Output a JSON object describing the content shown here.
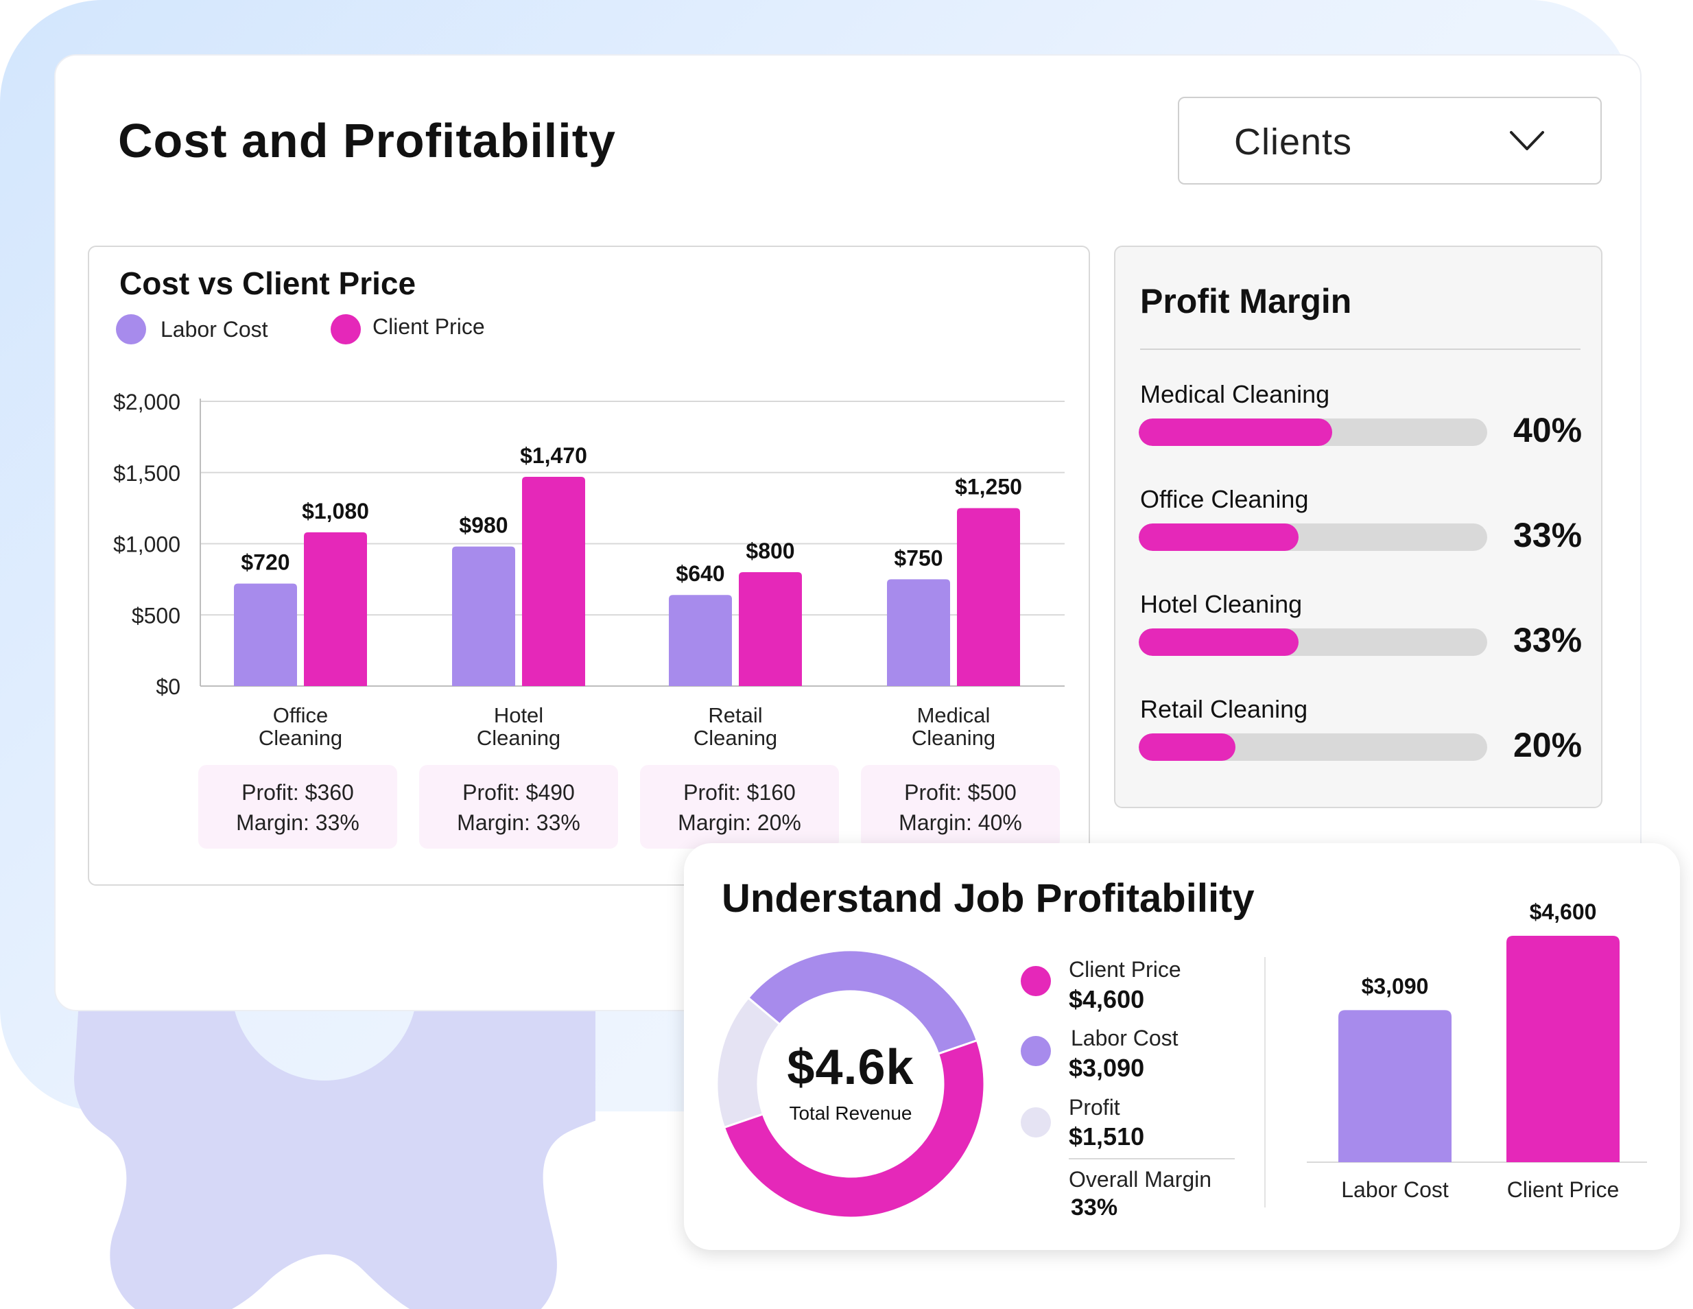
{
  "header": {
    "title": "Cost and Profitability",
    "dropdown": {
      "selected": "Clients",
      "icon": "chevron-down-icon"
    }
  },
  "colors": {
    "labor": "#a78bec",
    "client": "#e528b9",
    "profit": "#e5e3f3",
    "track": "#d9d9d9"
  },
  "chart_data": [
    {
      "type": "bar",
      "title": "Cost vs Client Price",
      "categories": [
        "Office\nCleaning",
        "Hotel\nCleaning",
        "Retail\nCleaning",
        "Medical\nCleaning"
      ],
      "series": [
        {
          "name": "Labor Cost",
          "values": [
            720,
            980,
            640,
            750
          ],
          "labels": [
            "$720",
            "$980",
            "$640",
            "$750"
          ]
        },
        {
          "name": "Client Price",
          "values": [
            1080,
            1470,
            800,
            1250
          ],
          "labels": [
            "$1,080",
            "$1,470",
            "$800",
            "$1,250"
          ]
        }
      ],
      "ylim": [
        0,
        2000
      ],
      "yticks": [
        0,
        500,
        1000,
        1500,
        2000
      ],
      "ytick_labels": [
        "$0",
        "$500",
        "$1,000",
        "$1,500",
        "$2,000"
      ],
      "grid": true,
      "legend": "top-left",
      "summaries": [
        {
          "profit": "Profit: $360",
          "margin": "Margin: 33%"
        },
        {
          "profit": "Profit: $490",
          "margin": "Margin: 33%"
        },
        {
          "profit": "Profit: $160",
          "margin": "Margin: 20%"
        },
        {
          "profit": "Profit: $500",
          "margin": "Margin: 40%"
        }
      ]
    },
    {
      "type": "bar",
      "title": "Profit Margin",
      "orientation": "horizontal",
      "categories": [
        "Medical Cleaning",
        "Office Cleaning",
        "Hotel Cleaning",
        "Retail Cleaning"
      ],
      "values": [
        40,
        33,
        33,
        20
      ],
      "value_labels": [
        "40%",
        "33%",
        "33%",
        "20%"
      ],
      "xlim": [
        0,
        72
      ]
    },
    {
      "type": "pie",
      "donut": true,
      "title": "Understand Job Profitability",
      "center_value": "$4.6k",
      "center_label": "Total Revenue",
      "slices": [
        {
          "name": "Profit",
          "value": 1510,
          "label": "$1,510"
        },
        {
          "name": "Labor Cost",
          "value": 3090,
          "label": "$3,090"
        },
        {
          "name": "Client Price",
          "value": 4600,
          "label": "$4,600"
        }
      ],
      "overall_margin_label": "Overall Margin",
      "overall_margin_value": "33%"
    },
    {
      "type": "bar",
      "categories": [
        "Labor Cost",
        "Client Price"
      ],
      "values": [
        3090,
        4600
      ],
      "value_labels": [
        "$3,090",
        "$4,600"
      ]
    }
  ]
}
